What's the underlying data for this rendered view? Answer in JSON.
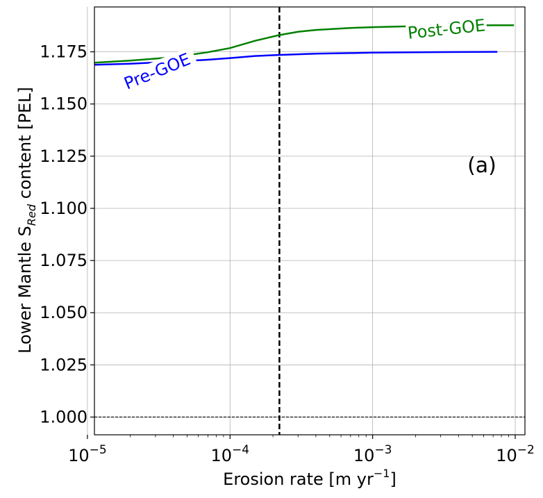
{
  "chart_data": {
    "type": "line",
    "xscale": "log",
    "xlim": [
      1.12e-05,
      0.0117
    ],
    "ylim": [
      0.9915,
      1.1965
    ],
    "grid": true,
    "xlabel": "Erosion rate [m yr",
    "xlabel_sup": "−1",
    "xlabel_end": "]",
    "ylabel": "Lower Mantle S",
    "ylabel_sub": "Red",
    "ylabel_end": " content [PEL]",
    "panel_label": "(a)",
    "x_ticks": [
      {
        "value": 1e-05,
        "base": "10",
        "exp": "−5"
      },
      {
        "value": 0.0001,
        "base": "10",
        "exp": "−4"
      },
      {
        "value": 0.001,
        "base": "10",
        "exp": "−3"
      },
      {
        "value": 0.01,
        "base": "10",
        "exp": "−2"
      }
    ],
    "y_ticks": [
      {
        "value": 1.0,
        "label": "1.000"
      },
      {
        "value": 1.025,
        "label": "1.025"
      },
      {
        "value": 1.05,
        "label": "1.050"
      },
      {
        "value": 1.075,
        "label": "1.075"
      },
      {
        "value": 1.1,
        "label": "1.100"
      },
      {
        "value": 1.125,
        "label": "1.125"
      },
      {
        "value": 1.15,
        "label": "1.150"
      },
      {
        "value": 1.175,
        "label": "1.175"
      }
    ],
    "series": [
      {
        "name": "Pre-GOE",
        "color": "#0000ff",
        "x": [
          1.12e-05,
          2e-05,
          4e-05,
          7e-05,
          0.0001,
          0.00015,
          0.00022,
          0.0004,
          0.0007,
          0.001,
          0.002,
          0.004,
          0.0075
        ],
        "y": [
          1.1688,
          1.1693,
          1.1703,
          1.1712,
          1.172,
          1.173,
          1.1735,
          1.1741,
          1.1744,
          1.1746,
          1.1748,
          1.1749,
          1.175
        ],
        "label_at": 3.4e-05,
        "label_rotation": -22,
        "label_x_data": 3.1e-05,
        "label_y_data": 1.1653
      },
      {
        "name": "Post-GOE",
        "color": "#008000",
        "x": [
          1.12e-05,
          2e-05,
          4e-05,
          7e-05,
          0.0001,
          0.00015,
          0.00022,
          0.0003,
          0.0004,
          0.0007,
          0.001,
          0.002,
          0.004,
          0.007,
          0.0098
        ],
        "y": [
          1.1698,
          1.1708,
          1.1724,
          1.1748,
          1.1768,
          1.1803,
          1.183,
          1.1846,
          1.1855,
          1.1864,
          1.1868,
          1.1873,
          1.1876,
          1.1877,
          1.1877
        ],
        "label_at": 0.0033,
        "label_rotation": -6,
        "label_x_data": 0.0033,
        "label_y_data": 1.1855
      }
    ],
    "reference_lines": [
      {
        "orientation": "vertical",
        "x": 0.000222,
        "style": "dashed",
        "color": "#000000",
        "width": 2.5
      },
      {
        "orientation": "horizontal",
        "y": 1.0,
        "style": "dashed",
        "color": "#000000",
        "width": 1.2
      }
    ]
  }
}
